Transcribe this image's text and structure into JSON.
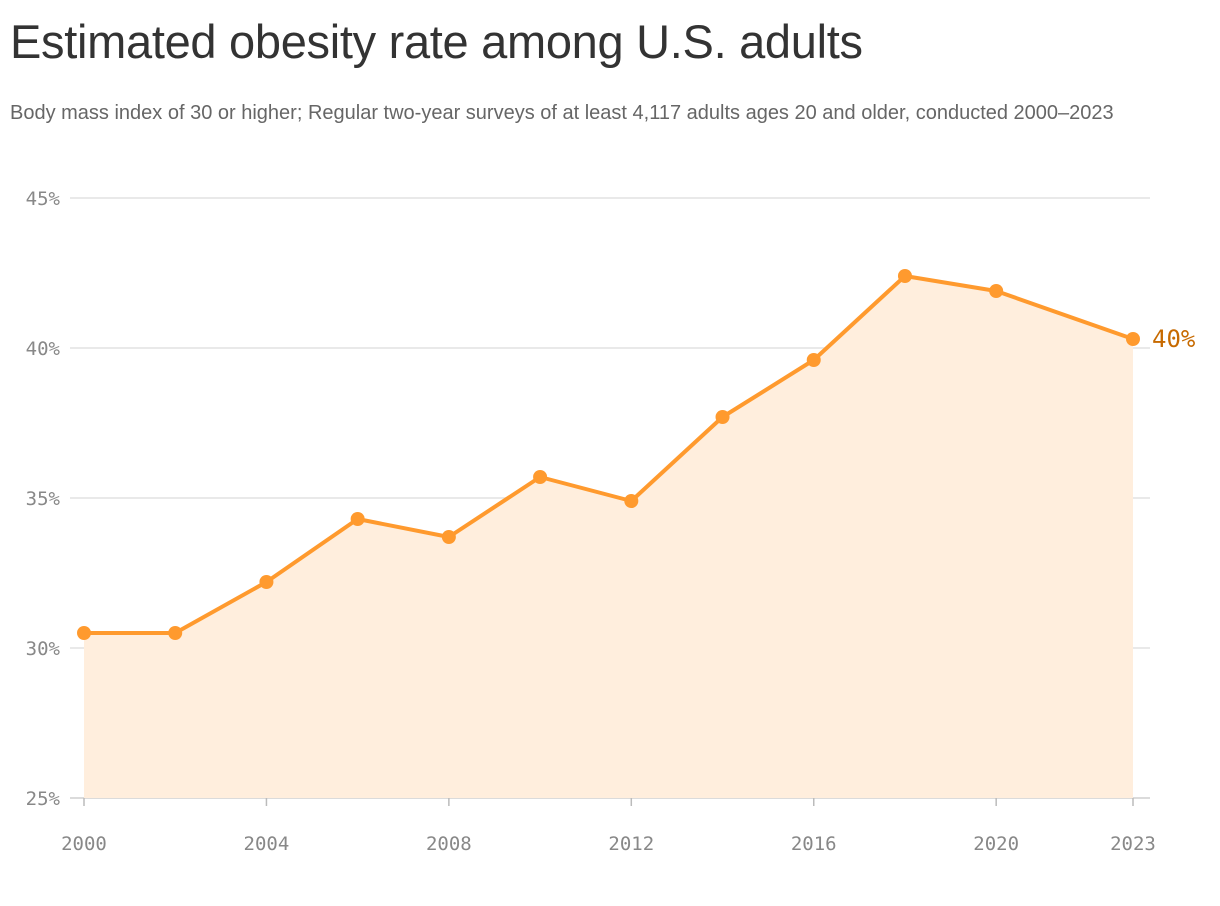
{
  "title": "Estimated obesity rate among U.S. adults",
  "subtitle": "Body mass index of 30 or higher; Regular two-year surveys of at least 4,117 adults ages 20 and older, conducted 2000–2023",
  "chart_data": {
    "type": "area",
    "title": "Estimated obesity rate among U.S. adults",
    "x": [
      2000,
      2002,
      2004,
      2006,
      2008,
      2010,
      2012,
      2014,
      2016,
      2018,
      2020,
      2023
    ],
    "series": [
      {
        "values": [
          30.5,
          30.5,
          32.2,
          34.3,
          33.7,
          35.7,
          34.9,
          37.7,
          39.6,
          42.4,
          41.9,
          40.3
        ]
      }
    ],
    "xlim": [
      2000,
      2023
    ],
    "ylim": [
      25,
      45
    ],
    "x_ticks": [
      "2000",
      "2004",
      "2008",
      "2012",
      "2016",
      "2020",
      "2023"
    ],
    "y_ticks": [
      "25%",
      "30%",
      "35%",
      "40%",
      "45%"
    ],
    "end_label": "40%",
    "grid": "horizontal",
    "colors": {
      "line": "#ff9a2e",
      "fill": "#ffeedd",
      "end_label": "#c76a00",
      "grid": "#e2e2e2"
    }
  }
}
